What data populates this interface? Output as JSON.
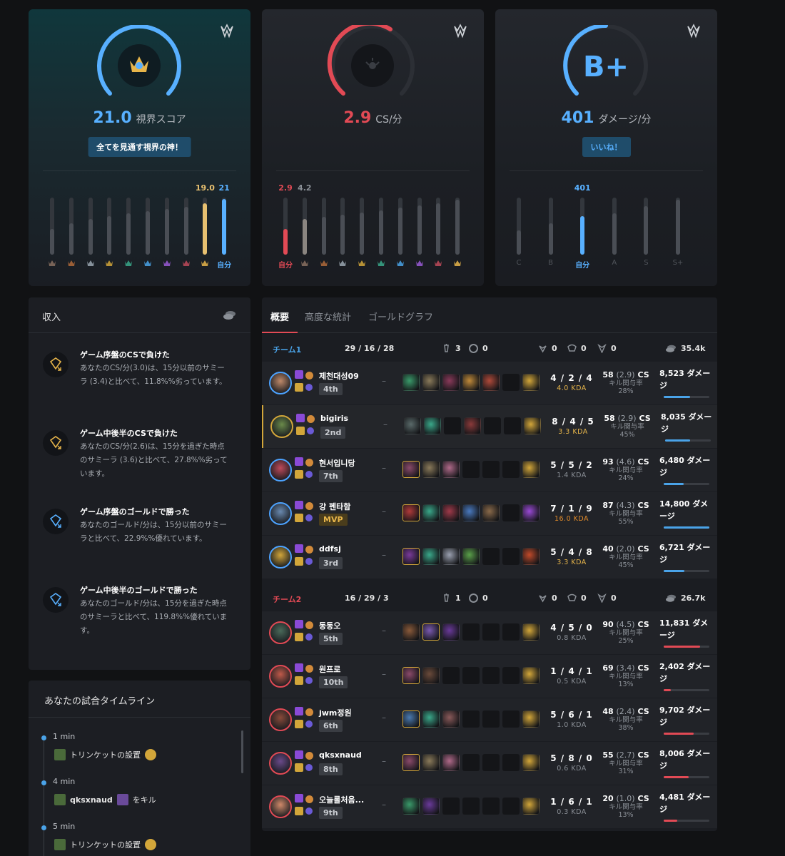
{
  "cards": [
    {
      "value": "21.0",
      "unit": "視界スコア",
      "value_color": "#58b0ff",
      "pill": "全てを見通す視界の神！",
      "bars": [
        {
          "fill": 0.45,
          "val": "",
          "lbl": "",
          "tier_color": "#8a7060"
        },
        {
          "fill": 0.55,
          "val": "",
          "lbl": "",
          "tier_color": "#b06a3a"
        },
        {
          "fill": 0.62,
          "val": "",
          "lbl": "",
          "tier_color": "#9aa6b0"
        },
        {
          "fill": 0.68,
          "val": "",
          "lbl": "",
          "tier_color": "#d2a63a"
        },
        {
          "fill": 0.72,
          "val": "",
          "lbl": "",
          "tier_color": "#3aa88a"
        },
        {
          "fill": 0.76,
          "val": "",
          "lbl": "",
          "tier_color": "#4aa3e8"
        },
        {
          "fill": 0.8,
          "val": "",
          "lbl": "",
          "tier_color": "#9a5ad6"
        },
        {
          "fill": 0.84,
          "val": "",
          "lbl": "",
          "tier_color": "#c04a5a"
        },
        {
          "fill": 0.9,
          "val": "19.0",
          "lbl": "",
          "tier_color": "#e7b54a",
          "color": "#e7c070",
          "val_color": "#e7c070"
        },
        {
          "fill": 0.98,
          "val": "21",
          "lbl": "自分",
          "color": "#58b0ff",
          "val_color": "#58b0ff"
        }
      ]
    },
    {
      "value": "2.9",
      "unit": "CS/分",
      "value_color": "#e24a55",
      "bars": [
        {
          "fill": 0.45,
          "val": "2.9",
          "lbl": "自分",
          "color": "#e24a55",
          "val_color": "#e24a55"
        },
        {
          "fill": 0.62,
          "val": "4.2",
          "lbl": "",
          "color": "#8a8580",
          "val_color": "#8b9097",
          "tier_color": "#8a7060"
        },
        {
          "fill": 0.66,
          "val": "",
          "lbl": "",
          "tier_color": "#b06a3a"
        },
        {
          "fill": 0.7,
          "val": "",
          "lbl": "",
          "tier_color": "#9aa6b0"
        },
        {
          "fill": 0.74,
          "val": "",
          "lbl": "",
          "tier_color": "#d2a63a"
        },
        {
          "fill": 0.78,
          "val": "",
          "lbl": "",
          "tier_color": "#3aa88a"
        },
        {
          "fill": 0.82,
          "val": "",
          "lbl": "",
          "tier_color": "#4aa3e8"
        },
        {
          "fill": 0.86,
          "val": "",
          "lbl": "",
          "tier_color": "#9a5ad6"
        },
        {
          "fill": 0.9,
          "val": "",
          "lbl": "",
          "tier_color": "#c04a5a"
        },
        {
          "fill": 0.96,
          "val": "",
          "lbl": "",
          "tier_color": "#e7b54a"
        }
      ]
    },
    {
      "grade": "B+",
      "value": "401",
      "unit": "ダメージ/分",
      "value_color": "#58b0ff",
      "pill": "いいね！",
      "bars": [
        {
          "fill": 0.42,
          "val": "",
          "lbl": "C"
        },
        {
          "fill": 0.55,
          "val": "",
          "lbl": "B"
        },
        {
          "fill": 0.68,
          "val": "401",
          "lbl": "自分",
          "color": "#58b0ff",
          "val_color": "#58b0ff"
        },
        {
          "fill": 0.72,
          "val": "",
          "lbl": "A"
        },
        {
          "fill": 0.85,
          "val": "",
          "lbl": "S"
        },
        {
          "fill": 0.96,
          "val": "",
          "lbl": "S+"
        }
      ]
    }
  ],
  "income": {
    "title": "収入",
    "items": [
      {
        "title": "ゲーム序盤のCSで負けた",
        "desc": "あなたのCS/分(3.0)は、15分以前のサミーラ (3.4)と比べて、11.8%%劣っています。",
        "color": "#e7b54a"
      },
      {
        "title": "ゲーム中後半のCSで負けた",
        "desc": "あなたのCS/分(2.6)は、15分を過ぎた時点のサミーラ (3.6)と比べて、27.8%%劣っています。",
        "color": "#e7b54a"
      },
      {
        "title": "ゲーム序盤のゴールドで勝った",
        "desc": "あなたのゴールド/分は、15分以前のサミーラと比べて、22.9%%優れています。",
        "color": "#58b0ff"
      },
      {
        "title": "ゲーム中後半のゴールドで勝った",
        "desc": "あなたのゴールド/分は、15分を過ぎた時点のサミーラと比べて、119.8%%優れています。",
        "color": "#58b0ff"
      }
    ]
  },
  "timeline": {
    "title": "あなたの試合タイムライン",
    "events": [
      {
        "min": "1 min",
        "text": "トリンケットの設置",
        "target": ""
      },
      {
        "min": "4 min",
        "text": "をキル",
        "target": "qksxnaud"
      },
      {
        "min": "5 min",
        "text": "トリンケットの設置",
        "target": ""
      }
    ]
  },
  "tabs": [
    "概要",
    "高度な統計",
    "ゴールドグラフ"
  ],
  "teams": [
    {
      "name": "チーム1",
      "color": "#4aa3e8",
      "kda": "29 / 16 / 28",
      "towers": "3",
      "inhibs": "0",
      "barons": "0",
      "heralds": "0",
      "dragons": "0",
      "gold": "35.4k",
      "players": [
        {
          "name": "제천대성09",
          "rank": "4th",
          "kda": "4 / 2 / 4",
          "ratio": "4.0 KDA",
          "ratio_color": "#e7b54a",
          "cs": "58",
          "csm": "(2.9)",
          "kp_label": "キル関与率",
          "kp": "28%",
          "dmg": "8,523 ダメージ",
          "dmg_frac": 0.58,
          "champ_color": "#c08a6a",
          "items": [
            "#3a9a6a",
            "#8a7a5a",
            "#8a3a5a",
            "#c08a3a",
            "#b04a3a",
            "",
            "#d2a63a"
          ]
        },
        {
          "name": "bigiris",
          "rank": "2nd",
          "kda": "8 / 4 / 5",
          "ratio": "3.3 KDA",
          "ratio_color": "#e7b54a",
          "cs": "58",
          "csm": "(2.9)",
          "kp_label": "キル関与率",
          "kp": "45%",
          "dmg": "8,035 ダメージ",
          "dmg_frac": 0.54,
          "champ_color": "#6a8a4a",
          "me": true,
          "items": [
            "#5a6a6a",
            "#3aa88a",
            "",
            "#8a3a3a",
            "",
            "",
            "#d2a63a"
          ]
        },
        {
          "name": "현서입니당",
          "rank": "7th",
          "kda": "5 / 5 / 2",
          "ratio": "1.4 KDA",
          "ratio_color": "#8b9097",
          "cs": "93",
          "csm": "(4.6)",
          "kp_label": "キル関与率",
          "kp": "24%",
          "dmg": "6,480 ダメージ",
          "dmg_frac": 0.44,
          "champ_color": "#c04a5a",
          "items": [
            "#8a4a6a",
            "#8a7a5a",
            "#b06a8a",
            "",
            "",
            "",
            "#d2a63a"
          ]
        },
        {
          "name": "강 펜타함",
          "rank": "MVP",
          "mvp": true,
          "kda": "7 / 1 / 9",
          "ratio": "16.0 KDA",
          "ratio_color": "#e08a2a",
          "cs": "87",
          "csm": "(4.3)",
          "kp_label": "キル関与率",
          "kp": "55%",
          "dmg": "14,800 ダメージ",
          "dmg_frac": 1.0,
          "champ_color": "#6a8ab0",
          "items": [
            "#b03a3a",
            "#3aa88a",
            "#a03a4a",
            "#4a7ac0",
            "#8a6a4a",
            "",
            "#9a4ad6"
          ]
        },
        {
          "name": "ddfsj",
          "rank": "3rd",
          "kda": "5 / 4 / 8",
          "ratio": "3.3 KDA",
          "ratio_color": "#e7b54a",
          "cs": "40",
          "csm": "(2.0)",
          "kp_label": "キル関与率",
          "kp": "45%",
          "dmg": "6,721 ダメージ",
          "dmg_frac": 0.46,
          "champ_color": "#d2a63a",
          "items": [
            "#7a3a9a",
            "#3aa88a",
            "#9aa0b0",
            "#5aa04a",
            "",
            "",
            "#c04a2a"
          ]
        }
      ]
    },
    {
      "name": "チーム2",
      "color": "#e24a55",
      "kda": "16 / 29 / 3",
      "towers": "1",
      "inhibs": "0",
      "barons": "0",
      "heralds": "0",
      "dragons": "0",
      "gold": "26.7k",
      "players": [
        {
          "name": "동동오",
          "rank": "5th",
          "kda": "4 / 5 / 0",
          "ratio": "0.8 KDA",
          "ratio_color": "#8b9097",
          "cs": "90",
          "csm": "(4.5)",
          "kp_label": "キル関与率",
          "kp": "25%",
          "dmg": "11,831 ダメージ",
          "dmg_frac": 0.8,
          "champ_color": "#4a6a5a",
          "items": [
            "#8a5a3a",
            "#7a5ab0",
            "#6a3a9a",
            "",
            "",
            "",
            "#d2a63a"
          ]
        },
        {
          "name": "원프로",
          "rank": "10th",
          "kda": "1 / 4 / 1",
          "ratio": "0.5 KDA",
          "ratio_color": "#8b9097",
          "cs": "69",
          "csm": "(3.4)",
          "kp_label": "キル関与率",
          "kp": "13%",
          "dmg": "2,402 ダメージ",
          "dmg_frac": 0.16,
          "champ_color": "#c05a4a",
          "items": [
            "#8a4a6a",
            "#6a4a3a",
            "",
            "",
            "",
            "",
            "#d2a63a"
          ]
        },
        {
          "name": "jwm정원",
          "rank": "6th",
          "kda": "5 / 6 / 1",
          "ratio": "1.0 KDA",
          "ratio_color": "#8b9097",
          "cs": "48",
          "csm": "(2.4)",
          "kp_label": "キル関与率",
          "kp": "38%",
          "dmg": "9,702 ダメージ",
          "dmg_frac": 0.66,
          "champ_color": "#8a4a3a",
          "items": [
            "#4a7ab0",
            "#3aa88a",
            "#8a5a5a",
            "",
            "",
            "",
            "#d2a63a"
          ]
        },
        {
          "name": "qksxnaud",
          "rank": "8th",
          "kda": "5 / 8 / 0",
          "ratio": "0.6 KDA",
          "ratio_color": "#8b9097",
          "cs": "55",
          "csm": "(2.7)",
          "kp_label": "キル関与率",
          "kp": "31%",
          "dmg": "8,006 ダメージ",
          "dmg_frac": 0.54,
          "champ_color": "#6a4a8a",
          "items": [
            "#8a4a6a",
            "#8a7a5a",
            "#b06a8a",
            "",
            "",
            "",
            "#d2a63a"
          ]
        },
        {
          "name": "오늘롤처음...",
          "rank": "9th",
          "kda": "1 / 6 / 1",
          "ratio": "0.3 KDA",
          "ratio_color": "#8b9097",
          "cs": "20",
          "csm": "(1.0)",
          "kp_label": "キル関与率",
          "kp": "13%",
          "dmg": "4,481 ダメージ",
          "dmg_frac": 0.3,
          "champ_color": "#d08a6a",
          "items": [
            "#3a9a6a",
            "#6a3a9a",
            "",
            "",
            "",
            "",
            "#d2a63a"
          ]
        }
      ]
    }
  ],
  "cs_suffix": "CS"
}
